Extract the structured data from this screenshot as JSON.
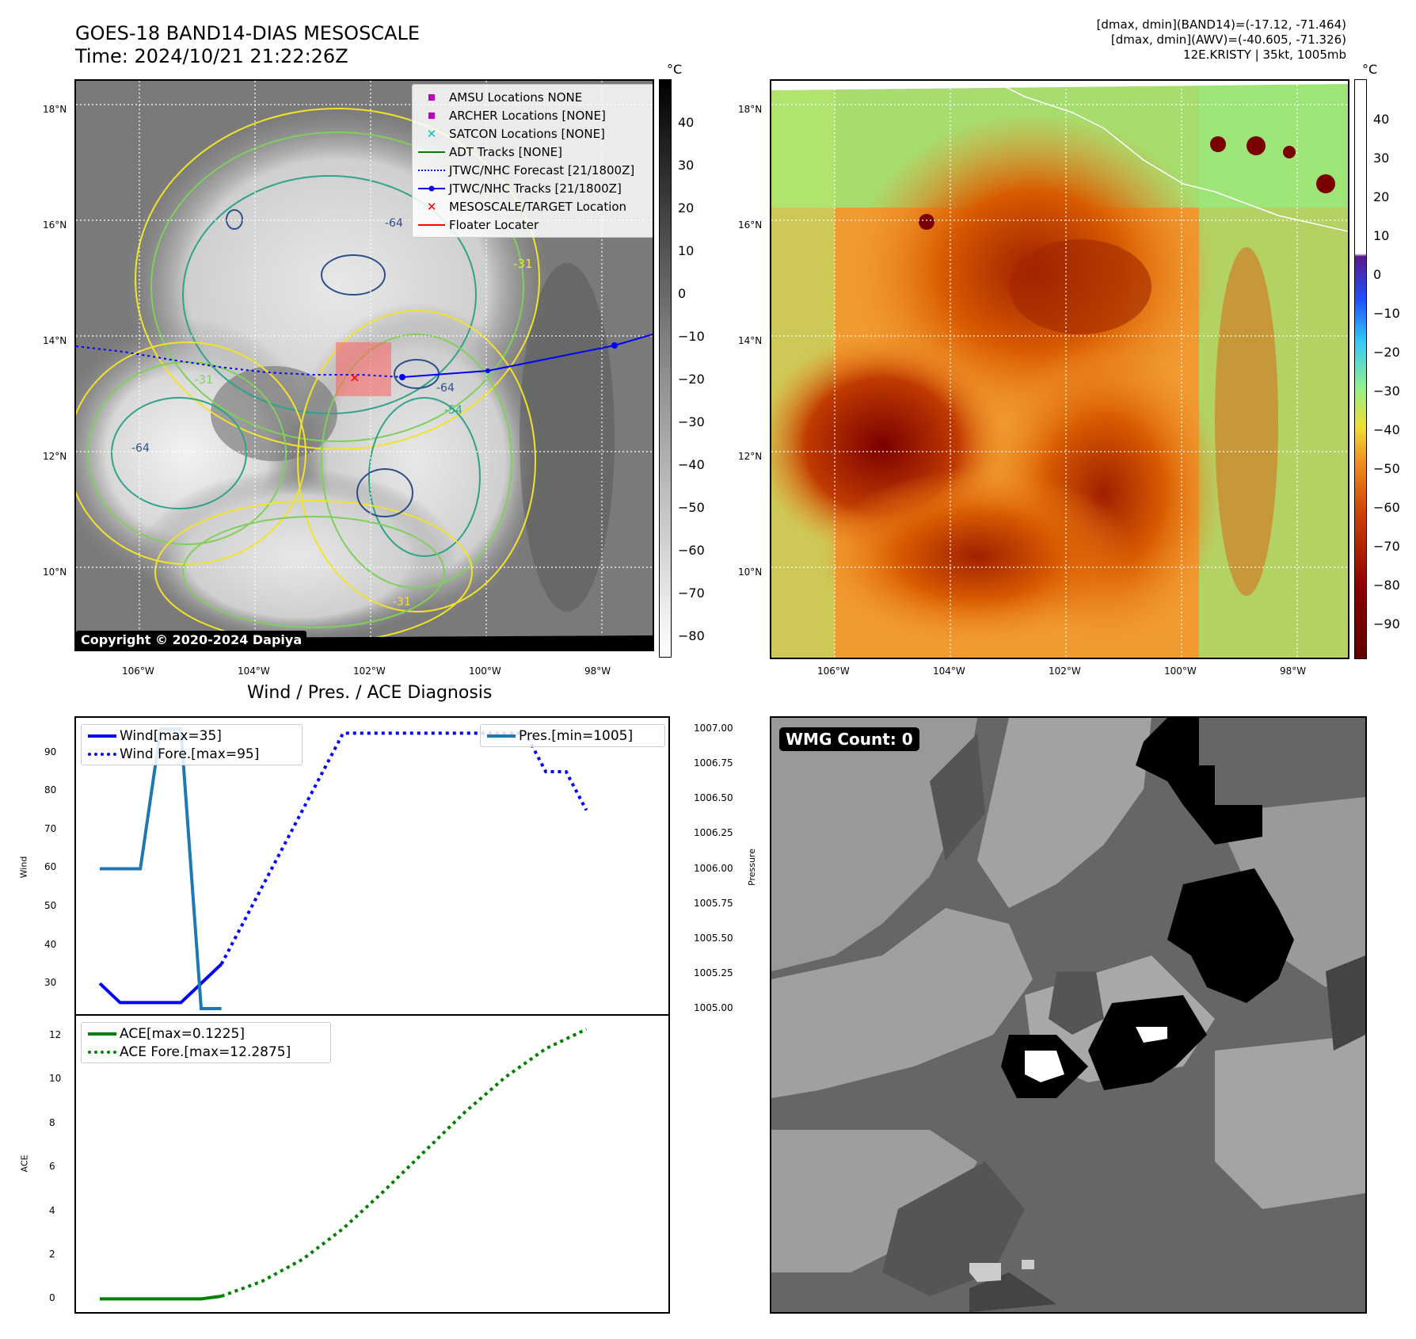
{
  "header": {
    "title_line1": "GOES-18 BAND14-DIAS MESOSCALE",
    "title_line2": "Time: 2024/10/21 21:22:26Z",
    "info_line1": "[dmax, dmin](BAND14)=(-17.12, -71.464)",
    "info_line2": "[dmax, dmin](AWV)=(-40.605, -71.326)",
    "info_line3": "12E.KRISTY | 35kt, 1005mb"
  },
  "map_axes": {
    "lat_labels": [
      "18°N",
      "16°N",
      "14°N",
      "12°N",
      "10°N"
    ],
    "lon_labels": [
      "106°W",
      "104°W",
      "102°W",
      "100°W",
      "98°W"
    ]
  },
  "map_left": {
    "legend": [
      {
        "label": "AMSU Locations NONE",
        "marker": "square",
        "color": "#bf00bf"
      },
      {
        "label": "ARCHER Locations [NONE]",
        "marker": "square",
        "color": "#bf00bf"
      },
      {
        "label": "SATCON Locations [NONE]",
        "marker": "x",
        "color": "#00bfbf"
      },
      {
        "label": "ADT Tracks [NONE]",
        "marker": "line",
        "color": "#008000"
      },
      {
        "label": "JTWC/NHC Forecast [21/1800Z]",
        "marker": "dotted",
        "color": "#0000ff"
      },
      {
        "label": "JTWC/NHC Tracks [21/1800Z]",
        "marker": "line-dot",
        "color": "#0000ff"
      },
      {
        "label": "MESOSCALE/TARGET Location",
        "marker": "x",
        "color": "#ff0000"
      },
      {
        "label": "Floater Locater",
        "marker": "line",
        "color": "#ff0000"
      }
    ],
    "contour_labels": [
      "-64",
      "-31",
      "-64",
      "-31",
      "-64",
      "-54",
      "-31"
    ],
    "copyright": "Copyright © 2020-2024 Dapiya",
    "colorbar_unit": "°C",
    "colorbar_ticks": [
      "40",
      "30",
      "20",
      "10",
      "0",
      "−10",
      "−20",
      "−30",
      "−40",
      "−50",
      "−60",
      "−70",
      "−80"
    ]
  },
  "map_right": {
    "colorbar_unit": "°C",
    "colorbar_ticks": [
      "40",
      "30",
      "20",
      "10",
      "0",
      "−10",
      "−20",
      "−30",
      "−40",
      "−50",
      "−60",
      "−70",
      "−80",
      "−90"
    ]
  },
  "wmg": {
    "label": "WMG Count: 0"
  },
  "colors": {
    "wind": "#0000ff",
    "pressure": "#1f77b4",
    "ace": "#008000"
  },
  "chart_data": [
    {
      "type": "line",
      "title": "Wind / Pres. / ACE Diagnosis",
      "ylabel": "Wind",
      "y2label": "Pressure",
      "ylim": [
        22,
        99
      ],
      "y2lim": [
        1004.96,
        1007.08
      ],
      "yticks": [
        "30",
        "40",
        "50",
        "60",
        "70",
        "80",
        "90"
      ],
      "y2ticks": [
        "1005.00",
        "1005.25",
        "1005.50",
        "1005.75",
        "1006.00",
        "1006.25",
        "1006.50",
        "1006.75",
        "1007.00"
      ],
      "series": [
        {
          "name": "Wind[max=35]",
          "axis": "left",
          "style": "solid",
          "x": [
            0,
            1,
            2,
            3,
            4,
            5,
            6
          ],
          "values": [
            30,
            25,
            25,
            25,
            25,
            30,
            35
          ]
        },
        {
          "name": "Wind Fore.[max=95]",
          "axis": "left",
          "style": "dotted",
          "x": [
            6,
            12,
            18,
            21,
            22,
            23,
            24
          ],
          "values": [
            35,
            95,
            95,
            95,
            85,
            85,
            75
          ]
        },
        {
          "name": "Pres.[min=1005]",
          "axis": "right",
          "style": "solid",
          "x": [
            0,
            2,
            3,
            4,
            5,
            6
          ],
          "values": [
            1006,
            1006,
            1007,
            1007,
            1005,
            1005
          ]
        }
      ]
    },
    {
      "type": "line",
      "ylabel": "ACE",
      "ylim": [
        -0.6,
        12.9
      ],
      "yticks": [
        "0",
        "2",
        "4",
        "6",
        "8",
        "10",
        "12"
      ],
      "series": [
        {
          "name": "ACE[max=0.1225]",
          "style": "solid",
          "x": [
            0,
            5,
            6
          ],
          "values": [
            0,
            0,
            0.1225
          ]
        },
        {
          "name": "ACE Fore.[max=12.2875]",
          "style": "dotted",
          "x": [
            6,
            8,
            10,
            12,
            14,
            16,
            18,
            20,
            22,
            24
          ],
          "values": [
            0.1225,
            0.8,
            1.8,
            3.2,
            4.9,
            6.7,
            8.5,
            10.1,
            11.4,
            12.2875
          ]
        }
      ]
    }
  ]
}
